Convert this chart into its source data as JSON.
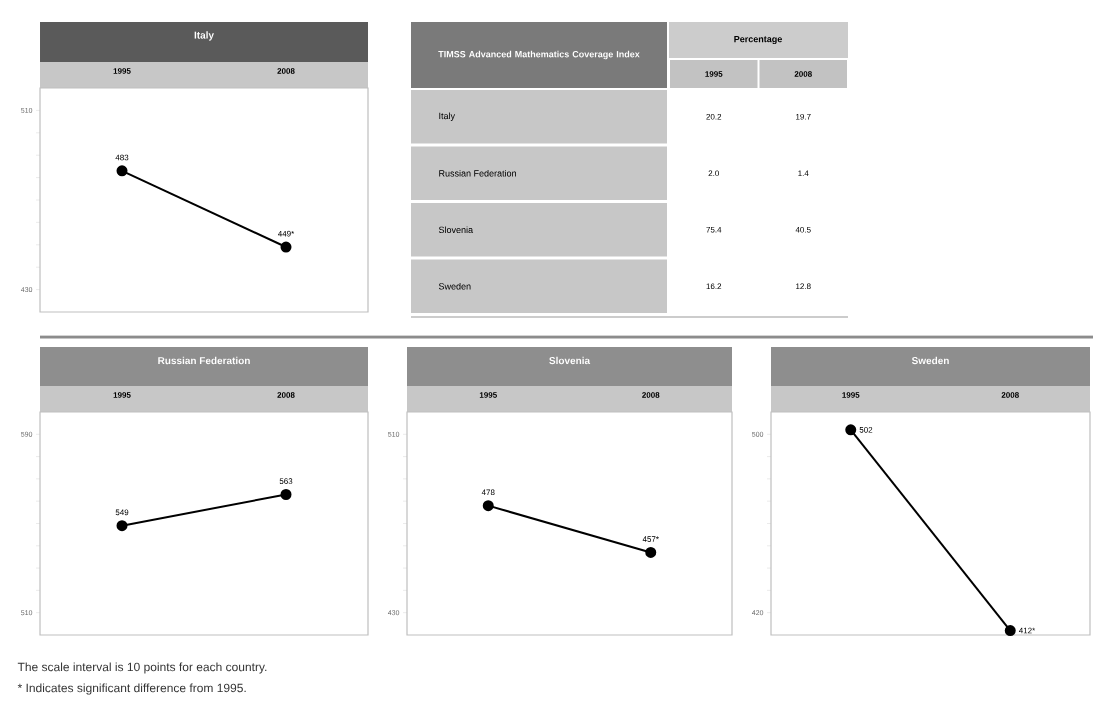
{
  "chart_data": [
    {
      "type": "line",
      "title": "Italy",
      "categories": [
        "1995",
        "2008"
      ],
      "marker": "circle",
      "ylim": [
        420,
        520
      ],
      "yticks": [
        510,
        {
          "value": 500,
          "label": null
        },
        {
          "value": 490,
          "label": null
        },
        {
          "value": 480,
          "label": null
        },
        {
          "value": 470,
          "label": null
        },
        {
          "value": 460,
          "label": null
        },
        {
          "value": 450,
          "label": null
        },
        {
          "value": 440,
          "label": null
        },
        430
      ],
      "series": [
        {
          "color": "#000000",
          "values": [
            483,
            449
          ],
          "value_labels": [
            "483",
            "449*"
          ]
        }
      ]
    },
    {
      "type": "other",
      "title": "TIMSS Advanced Mathematics Coverage Index",
      "xlabel": "Percentage",
      "categories": [
        "Italy",
        "Russian Federation",
        "Slovenia",
        "Sweden"
      ],
      "data_labels": true,
      "series": [
        {
          "name": "1995",
          "values": [
            20.2,
            2.0,
            75.4,
            16.2
          ],
          "value_labels": [
            "20.2",
            "2.0",
            "75.4",
            "16.2"
          ]
        },
        {
          "name": "2008",
          "values": [
            19.7,
            1.4,
            40.5,
            12.8
          ],
          "value_labels": [
            "19.7",
            "1.4",
            "40.5",
            "12.8"
          ]
        }
      ]
    },
    {
      "type": "line",
      "title": "Russian Federation",
      "categories": [
        "1995",
        "2008"
      ],
      "marker": "circle",
      "ylim": [
        500,
        600
      ],
      "yticks": [
        590,
        {
          "value": 580,
          "label": null
        },
        {
          "value": 570,
          "label": null
        },
        {
          "value": 560,
          "label": null
        },
        {
          "value": 550,
          "label": null
        },
        {
          "value": 540,
          "label": null
        },
        {
          "value": 530,
          "label": null
        },
        {
          "value": 520,
          "label": null
        },
        510
      ],
      "series": [
        {
          "color": "#000000",
          "values": [
            549,
            563
          ],
          "value_labels": [
            "549",
            "563"
          ]
        }
      ]
    },
    {
      "type": "line",
      "title": "Slovenia",
      "categories": [
        "1995",
        "2008"
      ],
      "marker": "circle",
      "ylim": [
        420,
        520
      ],
      "yticks": [
        510,
        {
          "value": 500,
          "label": null
        },
        {
          "value": 490,
          "label": null
        },
        {
          "value": 480,
          "label": null
        },
        {
          "value": 470,
          "label": null
        },
        {
          "value": 460,
          "label": null
        },
        {
          "value": 450,
          "label": null
        },
        {
          "value": 440,
          "label": null
        },
        430
      ],
      "series": [
        {
          "color": "#000000",
          "values": [
            478,
            457
          ],
          "value_labels": [
            "478",
            "457*"
          ]
        }
      ]
    },
    {
      "type": "line",
      "title": "Sweden",
      "categories": [
        "1995",
        "2008"
      ],
      "marker": "circle",
      "ylim": [
        410,
        510
      ],
      "yticks": [
        500,
        {
          "value": 490,
          "label": null
        },
        {
          "value": 480,
          "label": null
        },
        {
          "value": 470,
          "label": null
        },
        {
          "value": 460,
          "label": null
        },
        {
          "value": 450,
          "label": null
        },
        {
          "value": 440,
          "label": null
        },
        {
          "value": 430,
          "label": null
        },
        420
      ],
      "series": [
        {
          "color": "#000000",
          "values": [
            502,
            412
          ],
          "value_labels": [
            "502",
            "412*"
          ]
        }
      ],
      "annotations": [
        "The scale interval is 10 points for each country.",
        "* Indicates significant difference from 1995."
      ]
    }
  ]
}
